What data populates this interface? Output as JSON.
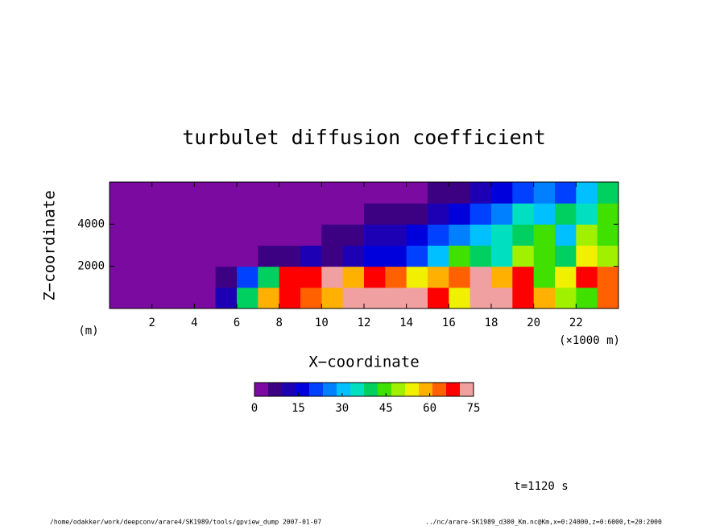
{
  "chart_data": {
    "type": "heatmap",
    "title": "turbulet diffusion coefficient",
    "xlabel": "X−coordinate",
    "ylabel": "Z−coordinate",
    "xunit": "(×1000 m)",
    "yunit": "(m)",
    "xlim": [
      0,
      24
    ],
    "xticks": [
      2,
      4,
      6,
      8,
      10,
      12,
      14,
      16,
      18,
      20,
      22
    ],
    "ylim": [
      0,
      6000
    ],
    "yticks": [
      2000,
      4000
    ],
    "x": [
      0.5,
      1.5,
      2.5,
      3.5,
      4.5,
      5.5,
      6.5,
      7.5,
      8.5,
      9.5,
      10.5,
      11.5,
      12.5,
      13.5,
      14.5,
      15.5,
      16.5,
      17.5,
      18.5,
      19.5,
      20.5,
      21.5,
      22.5,
      23.5
    ],
    "z": [
      500,
      1500,
      2500,
      3500,
      4500,
      5500
    ],
    "values": [
      [
        1,
        1,
        1,
        1,
        2,
        10,
        40,
        60,
        70,
        65,
        60,
        75,
        75,
        75,
        75,
        70,
        55,
        75,
        75,
        70,
        60,
        50,
        45,
        65
      ],
      [
        1,
        1,
        1,
        1,
        2,
        8,
        20,
        40,
        70,
        70,
        72,
        60,
        70,
        65,
        55,
        60,
        65,
        75,
        60,
        70,
        45,
        55,
        70,
        65
      ],
      [
        1,
        1,
        1,
        1,
        1,
        2,
        4,
        6,
        8,
        10,
        8,
        12,
        15,
        18,
        20,
        30,
        45,
        40,
        35,
        50,
        45,
        40,
        55,
        50
      ],
      [
        1,
        1,
        1,
        1,
        1,
        1,
        2,
        2,
        3,
        4,
        5,
        8,
        10,
        12,
        15,
        20,
        25,
        30,
        35,
        40,
        45,
        30,
        50,
        45
      ],
      [
        0,
        0,
        0,
        0,
        0,
        0,
        1,
        1,
        1,
        2,
        2,
        3,
        5,
        6,
        8,
        10,
        15,
        20,
        25,
        35,
        30,
        40,
        35,
        45
      ],
      [
        0,
        0,
        0,
        0,
        0,
        0,
        0,
        0,
        0,
        1,
        1,
        1,
        2,
        3,
        4,
        6,
        8,
        10,
        15,
        20,
        25,
        20,
        30,
        40
      ]
    ],
    "clim": [
      0,
      75
    ],
    "cticks": [
      0,
      15,
      30,
      45,
      60,
      75
    ],
    "colors": [
      "#7a0aa0",
      "#3c0082",
      "#1e00b4",
      "#0000dc",
      "#0040ff",
      "#0080ff",
      "#00c0ff",
      "#00e0c0",
      "#00d060",
      "#40e000",
      "#a0f000",
      "#f0f000",
      "#ffb000",
      "#ff6000",
      "#ff0000",
      "#f0a0a0"
    ],
    "time_label": "t=1120 s",
    "footer_left": "/home/odakker/work/deepconv/arare4/SK1989/tools/gpview_dump   2007-01-07",
    "footer_right": "../nc/arare-SK1989_d300_Km.nc@Km,x=0:24000,z=0:6000,t=20:2000"
  }
}
